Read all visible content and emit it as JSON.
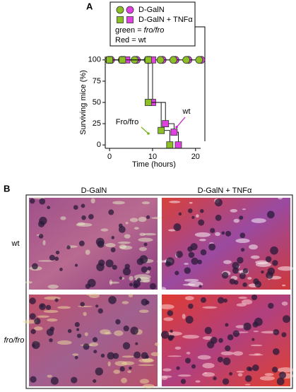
{
  "chart_data": {
    "type": "step",
    "panel": "A",
    "xlabel": "Time (hours)",
    "ylabel": "Surviving mice (%)",
    "xlim": [
      -1,
      22
    ],
    "ylim": [
      -4,
      104
    ],
    "xticks": [
      0,
      10,
      20
    ],
    "yticks": [
      0,
      25,
      50,
      75,
      100
    ],
    "series": [
      {
        "name": "D-GalN",
        "marker": "circle",
        "lines": [
          {
            "color": "#e040e0",
            "x": [
              0,
              3,
              6,
              9,
              12,
              15,
              18,
              21
            ],
            "values": [
              100,
              100,
              100,
              100,
              100,
              100,
              100,
              100
            ]
          },
          {
            "color": "#8cbf26",
            "x": [
              0,
              3,
              6,
              9,
              12,
              15,
              18,
              21
            ],
            "values": [
              100,
              100,
              100,
              100,
              100,
              100,
              100,
              100
            ]
          }
        ]
      },
      {
        "name": "D-GalN + TNFα",
        "marker": "square",
        "lines": [
          {
            "color": "#e040e0",
            "x": [
              0,
              4,
              10,
              10,
              13,
              15,
              16
            ],
            "values": [
              100,
              100,
              100,
              50,
              25,
              15,
              0
            ]
          },
          {
            "color": "#8cbf26",
            "x": [
              0,
              3,
              9,
              9,
              12,
              14
            ],
            "values": [
              100,
              100,
              100,
              50,
              17,
              0
            ]
          }
        ]
      }
    ],
    "notes": [
      {
        "text": "green = ",
        "italic": "fro/fro",
        "color": "#6aa51a"
      },
      {
        "text": "Red = wt",
        "color": "#c020c0"
      }
    ],
    "annotations": [
      {
        "text": "Fro/fro",
        "color": "#7ab317"
      },
      {
        "text": "wt",
        "color": "#c020c0"
      }
    ]
  },
  "panel_b": {
    "panel": "B",
    "columns": [
      "D-GalN",
      "D-GalN + TNFα"
    ],
    "rows": [
      "wt",
      "fro/fro"
    ]
  }
}
